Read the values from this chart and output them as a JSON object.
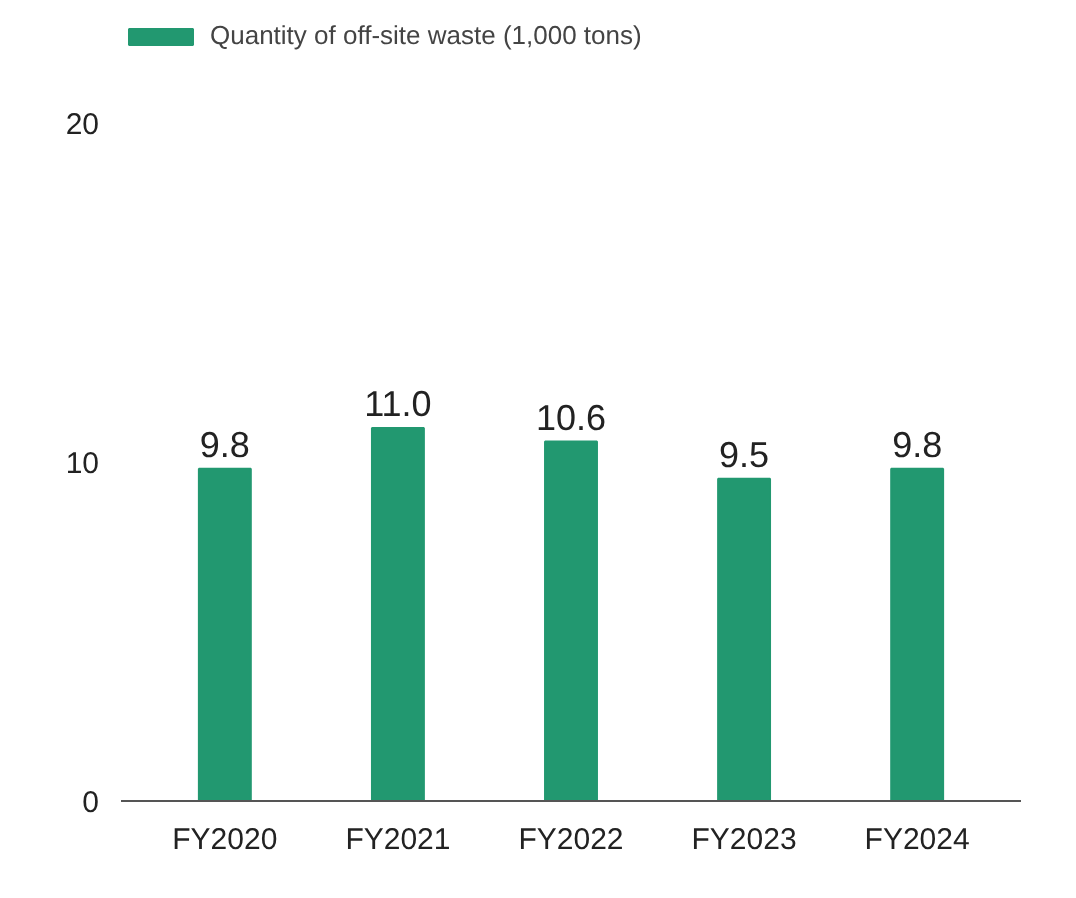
{
  "chart_data": {
    "type": "bar",
    "categories": [
      "FY2020",
      "FY2021",
      "FY2022",
      "FY2023",
      "FY2024"
    ],
    "series": [
      {
        "name": "Quantity of off-site waste (1,000 tons)",
        "color": "#229870",
        "values": [
          9.8,
          11.0,
          10.6,
          9.5,
          9.8
        ],
        "value_labels": [
          "9.8",
          "11.0",
          "10.6",
          "9.5",
          "9.8"
        ]
      }
    ],
    "ylim": [
      0,
      23
    ],
    "yticks": [
      0,
      10,
      20
    ],
    "grid": false,
    "legend": "top left"
  }
}
